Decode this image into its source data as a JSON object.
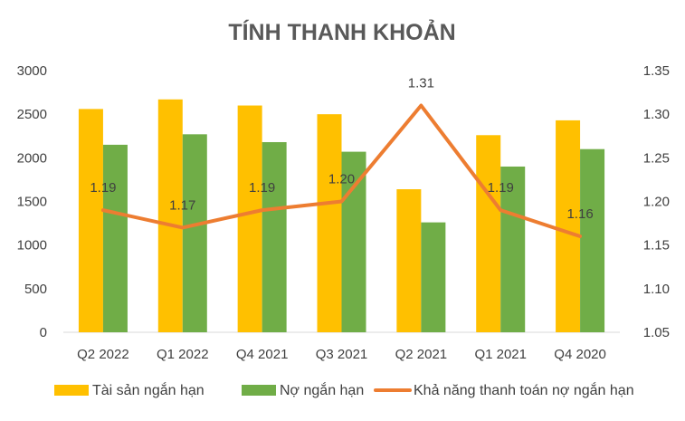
{
  "chart_data": {
    "type": "bar",
    "title": "TÍNH THANH KHOẢN",
    "categories": [
      "Q2 2022",
      "Q1 2022",
      "Q4 2021",
      "Q3 2021",
      "Q2 2021",
      "Q1 2021",
      "Q4 2020"
    ],
    "series": [
      {
        "name": "Tài sản ngắn hạn",
        "type": "bar",
        "axis": "left",
        "color": "#FFC000",
        "values": [
          2560,
          2670,
          2600,
          2500,
          1640,
          2260,
          2430
        ]
      },
      {
        "name": "Nợ ngắn hạn",
        "type": "bar",
        "axis": "left",
        "color": "#70AD47",
        "values": [
          2150,
          2270,
          2180,
          2070,
          1260,
          1900,
          2100
        ]
      },
      {
        "name": "Khả năng thanh toán nợ ngắn hạn",
        "type": "line",
        "axis": "right",
        "color": "#ED7D31",
        "values": [
          1.19,
          1.17,
          1.19,
          1.2,
          1.31,
          1.19,
          1.16
        ],
        "labels": [
          "1.19",
          "1.17",
          "1.19",
          "1.20",
          "1.31",
          "1.19",
          "1.16"
        ]
      }
    ],
    "y_left": {
      "lim": [
        0,
        3000
      ],
      "ticks": [
        "0",
        "500",
        "1000",
        "1500",
        "2000",
        "2500",
        "3000"
      ]
    },
    "y_right": {
      "lim": [
        1.05,
        1.35
      ],
      "ticks": [
        "1.05",
        "1.10",
        "1.15",
        "1.20",
        "1.25",
        "1.30",
        "1.35"
      ]
    },
    "grid": false,
    "legend_position": "bottom"
  }
}
